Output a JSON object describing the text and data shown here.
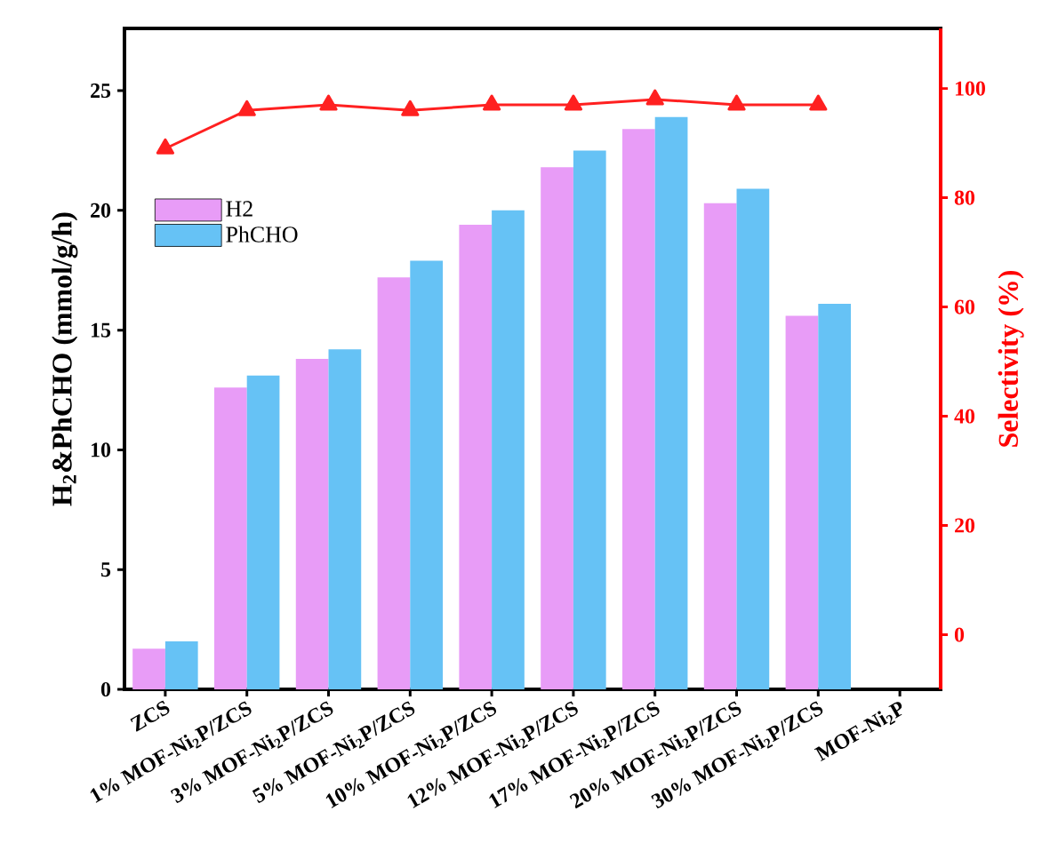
{
  "chart_data": {
    "type": "bar",
    "ylabel": "H$_{2}$&PhCHO (mmol/g/h)",
    "y2label": "Selectivity (%)",
    "categories": [
      "ZCS",
      "1% MOF-Ni$_{2}$P/ZCS",
      "3% MOF-Ni$_{2}$P/ZCS",
      "5% MOF-Ni$_{2}$P/ZCS",
      "10% MOF-Ni$_{2}$P/ZCS",
      "12% MOF-Ni$_{2}$P/ZCS",
      "17% MOF-Ni$_{2}$P/ZCS",
      "20% MOF-Ni$_{2}$P/ZCS",
      "30% MOF-Ni$_{2}$P/ZCS",
      "MOF-Ni$_{2}$P"
    ],
    "series": [
      {
        "name": "H2",
        "color": "#e89cf7",
        "values": [
          1.7,
          12.6,
          13.8,
          17.2,
          19.4,
          21.8,
          23.4,
          20.3,
          15.6,
          null
        ]
      },
      {
        "name": "PhCHO",
        "color": "#66c2f5",
        "values": [
          2.0,
          13.1,
          14.2,
          17.9,
          20.0,
          22.5,
          23.9,
          20.9,
          16.1,
          null
        ]
      },
      {
        "type": "line",
        "axis": "y2",
        "color": "#ff2020",
        "marker": "triangle",
        "line_style": "solid",
        "values": [
          89,
          96,
          97,
          96,
          97,
          97,
          98,
          97,
          97,
          null
        ]
      }
    ],
    "ylim": [
      0,
      27.6
    ],
    "yticks": [
      0,
      5,
      10,
      15,
      20,
      25
    ],
    "y2lim": [
      -10,
      111
    ],
    "y2ticks": [
      0,
      20,
      40,
      60,
      80,
      100
    ],
    "legend": "top left"
  }
}
